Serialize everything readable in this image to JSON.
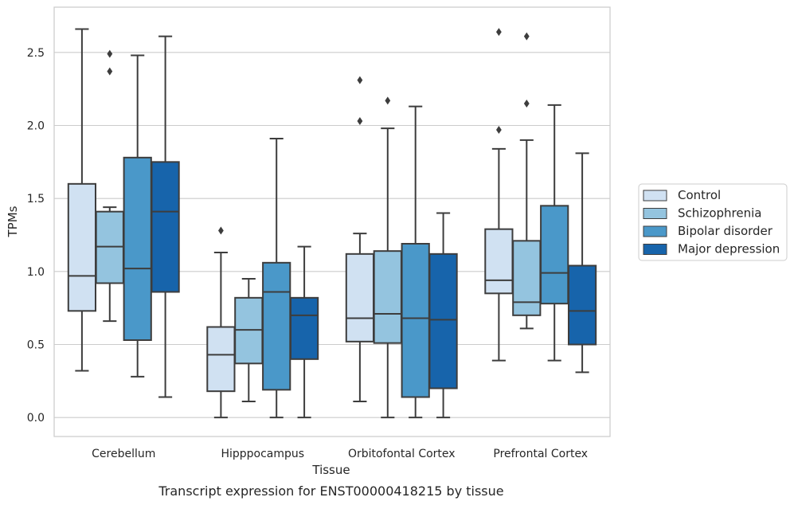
{
  "chart_data": {
    "type": "box",
    "title": "",
    "caption": "Transcript expression for ENST00000418215 by tissue",
    "xlabel": "Tissue",
    "ylabel": "TPMs",
    "ylim": [
      -0.13,
      2.81
    ],
    "yticks": [
      0.0,
      0.5,
      1.0,
      1.5,
      2.0,
      2.5
    ],
    "ytick_labels": [
      "0.0",
      "0.5",
      "1.0",
      "1.5",
      "2.0",
      "2.5"
    ],
    "grid": "horizontal",
    "legend_position": "right",
    "categories": [
      "Cerebellum",
      "Hipppocampus",
      "Orbitofontal Cortex",
      "Prefrontal Cortex"
    ],
    "series": [
      {
        "name": "Control",
        "color": "#d0e1f2",
        "boxes": [
          {
            "whislo": 0.32,
            "q1": 0.73,
            "med": 0.97,
            "q3": 1.6,
            "whishi": 2.66,
            "fliers": []
          },
          {
            "whislo": 0.0,
            "q1": 0.18,
            "med": 0.43,
            "q3": 0.62,
            "whishi": 1.13,
            "fliers": [
              1.28
            ]
          },
          {
            "whislo": 0.11,
            "q1": 0.52,
            "med": 0.68,
            "q3": 1.12,
            "whishi": 1.26,
            "fliers": [
              2.03,
              2.31
            ]
          },
          {
            "whislo": 0.39,
            "q1": 0.85,
            "med": 0.94,
            "q3": 1.29,
            "whishi": 1.84,
            "fliers": [
              1.97,
              2.64
            ]
          }
        ]
      },
      {
        "name": "Schizophrenia",
        "color": "#94c4df",
        "boxes": [
          {
            "whislo": 0.66,
            "q1": 0.92,
            "med": 1.17,
            "q3": 1.41,
            "whishi": 1.44,
            "fliers": [
              2.37,
              2.49
            ]
          },
          {
            "whislo": 0.11,
            "q1": 0.37,
            "med": 0.6,
            "q3": 0.82,
            "whishi": 0.95,
            "fliers": []
          },
          {
            "whislo": 0.0,
            "q1": 0.51,
            "med": 0.71,
            "q3": 1.14,
            "whishi": 1.98,
            "fliers": [
              2.17
            ]
          },
          {
            "whislo": 0.61,
            "q1": 0.7,
            "med": 0.79,
            "q3": 1.21,
            "whishi": 1.9,
            "fliers": [
              2.15,
              2.61
            ]
          }
        ]
      },
      {
        "name": "Bipolar disorder",
        "color": "#4a98c9",
        "boxes": [
          {
            "whislo": 0.28,
            "q1": 0.53,
            "med": 1.02,
            "q3": 1.78,
            "whishi": 2.48,
            "fliers": []
          },
          {
            "whislo": 0.0,
            "q1": 0.19,
            "med": 0.86,
            "q3": 1.06,
            "whishi": 1.91,
            "fliers": []
          },
          {
            "whislo": 0.0,
            "q1": 0.14,
            "med": 0.68,
            "q3": 1.19,
            "whishi": 2.13,
            "fliers": []
          },
          {
            "whislo": 0.39,
            "q1": 0.78,
            "med": 0.99,
            "q3": 1.45,
            "whishi": 2.14,
            "fliers": []
          }
        ]
      },
      {
        "name": "Major depression",
        "color": "#1764ab",
        "boxes": [
          {
            "whislo": 0.14,
            "q1": 0.86,
            "med": 1.41,
            "q3": 1.75,
            "whishi": 2.61,
            "fliers": []
          },
          {
            "whislo": 0.0,
            "q1": 0.4,
            "med": 0.7,
            "q3": 0.82,
            "whishi": 1.17,
            "fliers": []
          },
          {
            "whislo": 0.0,
            "q1": 0.2,
            "med": 0.67,
            "q3": 1.12,
            "whishi": 1.4,
            "fliers": []
          },
          {
            "whislo": 0.31,
            "q1": 0.5,
            "med": 0.73,
            "q3": 1.04,
            "whishi": 1.81,
            "fliers": []
          }
        ]
      }
    ]
  }
}
